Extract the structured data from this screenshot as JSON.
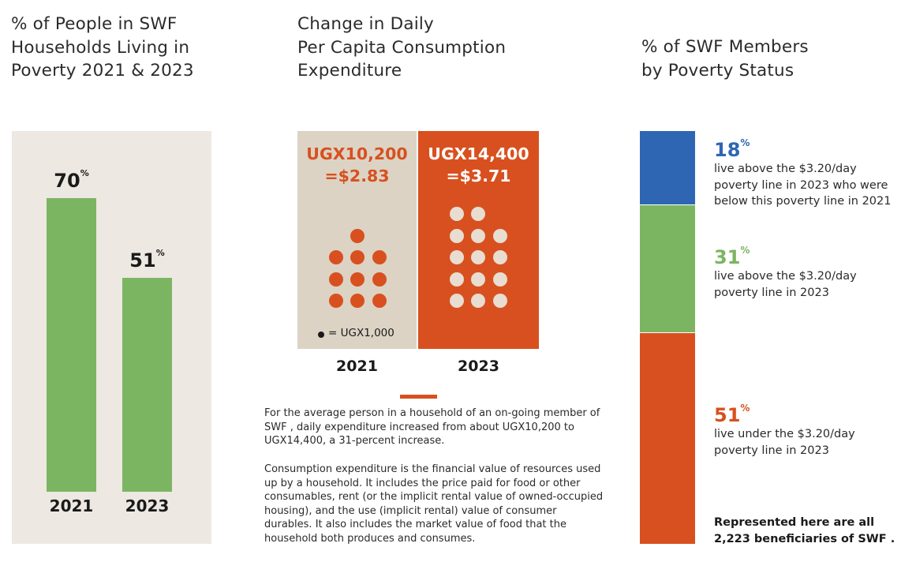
{
  "colors": {
    "green": "#7cb562",
    "orange": "#d8501f",
    "blue": "#2e66b4",
    "beige_panel": "#ede8e1",
    "tan_panel": "#dcd3c4",
    "light_dot": "#e8ddd0"
  },
  "chart_data": [
    {
      "type": "bar",
      "title": "% of People in SWF\nHouseholds Living in\nPoverty 2021 & 2023",
      "categories": [
        "2021",
        "2023"
      ],
      "values": [
        70,
        51
      ],
      "value_labels": [
        "70",
        "51"
      ],
      "unit": "%",
      "ylim": [
        0,
        100
      ]
    },
    {
      "type": "pictogram",
      "title": "Change in Daily\nPer Capita Consumption\nExpenditure",
      "categories": [
        "2021",
        "2023"
      ],
      "values": [
        10200,
        14400
      ],
      "amount_labels": [
        "UGX10,200\n=$2.83",
        "UGX14,400\n=$3.71"
      ],
      "dot_counts": [
        10,
        14
      ],
      "legend": "= UGX1,000",
      "paragraphs": [
        "For the average person in a household of an on-going member of SWF , daily expenditure increased from about UGX10,200 to UGX14,400, a 31-percent increase.",
        "Consumption expenditure is the financial value of resources used up by a household. It includes the price paid for food or other consumables, rent (or the implicit rental value of owned-occupied housing), and the use (implicit rental) value of consumer durables. It also includes the market value of food that the household both produces and consumes."
      ]
    },
    {
      "type": "stacked_bar",
      "title": "% of SWF Members\nby Poverty Status",
      "series": [
        {
          "name": "live above the $3.20/day\npoverty line in 2023 who were\nbelow this poverty line in 2021",
          "value": 18,
          "label": "18",
          "color": "#2e66b4"
        },
        {
          "name": "live above the $3.20/day\npoverty line in 2023",
          "value": 31,
          "label": "31",
          "color": "#7cb562"
        },
        {
          "name": "live under the $3.20/day\npoverty line in 2023",
          "value": 51,
          "label": "51",
          "color": "#d8501f"
        }
      ],
      "unit": "%",
      "footnote": "Represented here are all\n2,223 beneficiaries of SWF ."
    }
  ]
}
